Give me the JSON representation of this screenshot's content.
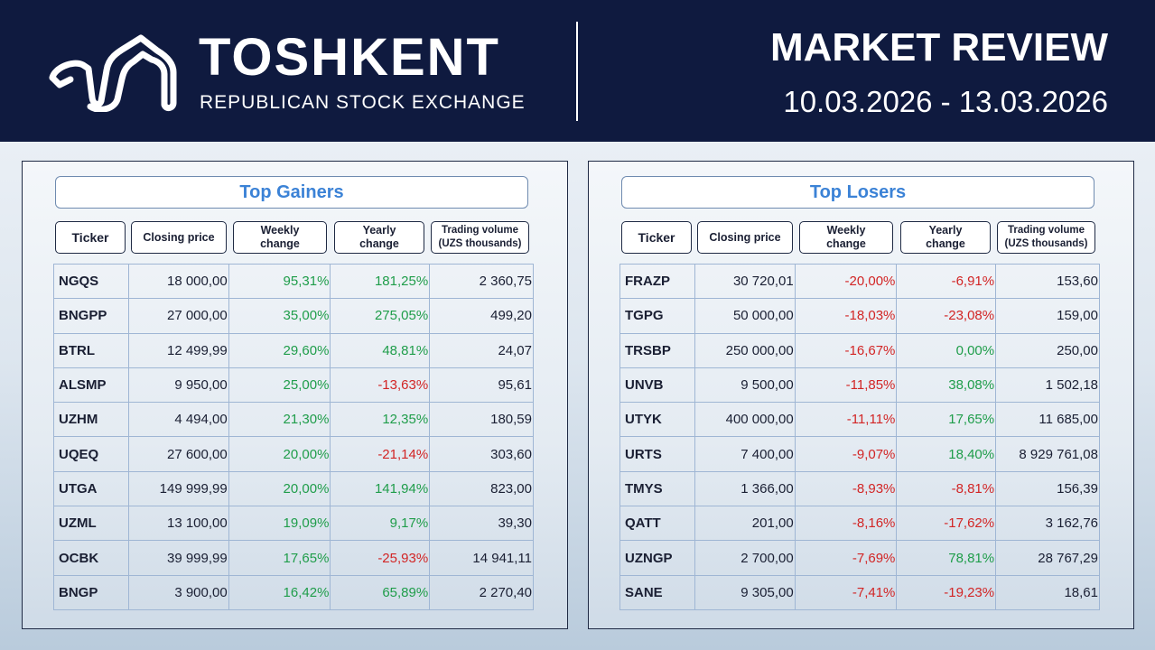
{
  "header": {
    "brand_title": "TOSHKENT",
    "brand_subtitle": "REPUBLICAN STOCK EXCHANGE",
    "review_title": "MARKET REVIEW",
    "review_dates": "10.03.2026 - 13.03.2026",
    "logo_icon": "toshkent-exchange-logo-icon"
  },
  "colors": {
    "header_bg": "#0f1a3f",
    "title_blue": "#3b82d6",
    "positive": "#1f9d4a",
    "negative": "#d22525"
  },
  "columns": {
    "ticker": "Ticker",
    "closing_price": "Closing price",
    "weekly_change_1": "Weekly",
    "weekly_change_2": "change",
    "yearly_change_1": "Yearly",
    "yearly_change_2": "change",
    "volume_1": "Trading volume",
    "volume_2": "(UZS thousands)"
  },
  "gainers": {
    "title": "Top Gainers",
    "rows": [
      {
        "ticker": "NGQS",
        "price": "18 000,00",
        "weekly": "95,31%",
        "yearly": "181,25%",
        "volume": "2 360,75"
      },
      {
        "ticker": "BNGPP",
        "price": "27 000,00",
        "weekly": "35,00%",
        "yearly": "275,05%",
        "volume": "499,20"
      },
      {
        "ticker": "BTRL",
        "price": "12 499,99",
        "weekly": "29,60%",
        "yearly": "48,81%",
        "volume": "24,07"
      },
      {
        "ticker": "ALSMP",
        "price": "9 950,00",
        "weekly": "25,00%",
        "yearly": "-13,63%",
        "volume": "95,61"
      },
      {
        "ticker": "UZHM",
        "price": "4 494,00",
        "weekly": "21,30%",
        "yearly": "12,35%",
        "volume": "180,59"
      },
      {
        "ticker": "UQEQ",
        "price": "27 600,00",
        "weekly": "20,00%",
        "yearly": "-21,14%",
        "volume": "303,60"
      },
      {
        "ticker": "UTGA",
        "price": "149 999,99",
        "weekly": "20,00%",
        "yearly": "141,94%",
        "volume": "823,00"
      },
      {
        "ticker": "UZML",
        "price": "13 100,00",
        "weekly": "19,09%",
        "yearly": "9,17%",
        "volume": "39,30"
      },
      {
        "ticker": "OCBK",
        "price": "39 999,99",
        "weekly": "17,65%",
        "yearly": "-25,93%",
        "volume": "14 941,11"
      },
      {
        "ticker": "BNGP",
        "price": "3 900,00",
        "weekly": "16,42%",
        "yearly": "65,89%",
        "volume": "2 270,40"
      }
    ]
  },
  "losers": {
    "title": "Top Losers",
    "rows": [
      {
        "ticker": "FRAZP",
        "price": "30 720,01",
        "weekly": "-20,00%",
        "yearly": "-6,91%",
        "volume": "153,60"
      },
      {
        "ticker": "TGPG",
        "price": "50 000,00",
        "weekly": "-18,03%",
        "yearly": "-23,08%",
        "volume": "159,00"
      },
      {
        "ticker": "TRSBP",
        "price": "250 000,00",
        "weekly": "-16,67%",
        "yearly": "0,00%",
        "volume": "250,00"
      },
      {
        "ticker": "UNVB",
        "price": "9 500,00",
        "weekly": "-11,85%",
        "yearly": "38,08%",
        "volume": "1 502,18"
      },
      {
        "ticker": "UTYK",
        "price": "400 000,00",
        "weekly": "-11,11%",
        "yearly": "17,65%",
        "volume": "11 685,00"
      },
      {
        "ticker": "URTS",
        "price": "7 400,00",
        "weekly": "-9,07%",
        "yearly": "18,40%",
        "volume": "8 929 761,08"
      },
      {
        "ticker": "TMYS",
        "price": "1 366,00",
        "weekly": "-8,93%",
        "yearly": "-8,81%",
        "volume": "156,39"
      },
      {
        "ticker": "QATT",
        "price": "201,00",
        "weekly": "-8,16%",
        "yearly": "-17,62%",
        "volume": "3 162,76"
      },
      {
        "ticker": "UZNGP",
        "price": "2 700,00",
        "weekly": "-7,69%",
        "yearly": "78,81%",
        "volume": "28 767,29"
      },
      {
        "ticker": "SANE",
        "price": "9 305,00",
        "weekly": "-7,41%",
        "yearly": "-19,23%",
        "volume": "18,61"
      }
    ]
  }
}
